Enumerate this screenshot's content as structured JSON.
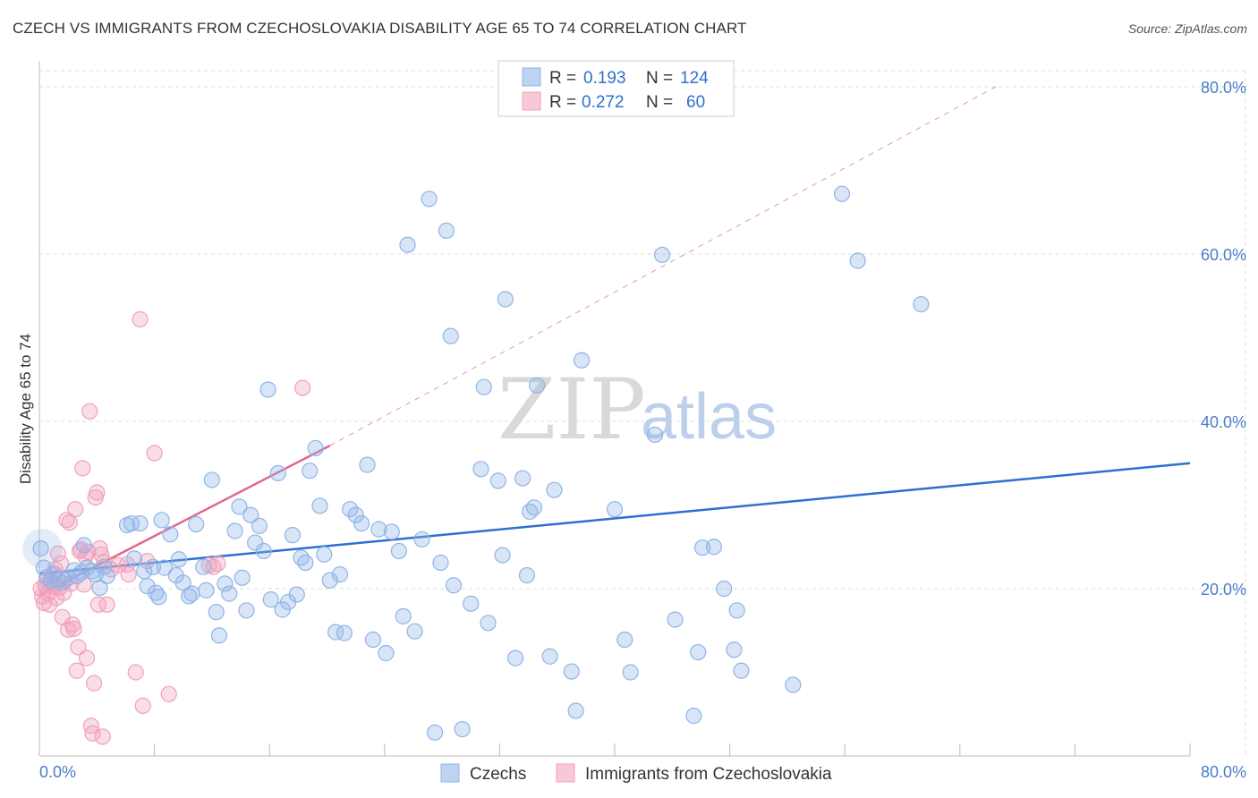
{
  "header": {
    "title": "CZECH VS IMMIGRANTS FROM CZECHOSLOVAKIA DISABILITY AGE 65 TO 74 CORRELATION CHART",
    "source": "Source: ZipAtlas.com"
  },
  "watermark": {
    "zip": "ZIP",
    "atlas": "atlas"
  },
  "colors": {
    "czechs": "#8fb4e8",
    "czechs_line": "#2f6fcf",
    "immigrants": "#f2a0ba",
    "immigrants_line": "#e2668f",
    "tick_text": "#4a7cc9",
    "grid": "#dddddd"
  },
  "chart_data": {
    "type": "scatter",
    "title": "CZECH VS IMMIGRANTS FROM CZECHOSLOVAKIA DISABILITY AGE 65 TO 74 CORRELATION CHART",
    "xlabel": "",
    "ylabel": "Disability Age 65 to 74",
    "xlim": [
      0,
      80
    ],
    "ylim": [
      0,
      80
    ],
    "x_tick_labels": [
      "0.0%",
      "80.0%"
    ],
    "y_tick_labels": [
      "20.0%",
      "40.0%",
      "60.0%",
      "80.0%"
    ],
    "y_ticks": [
      20,
      40,
      60,
      80
    ],
    "grid": true,
    "legend_top": [
      {
        "r_label": "R =",
        "r_value": "0.193",
        "n_label": "N =",
        "n_value": "124"
      },
      {
        "r_label": "R =",
        "r_value": "0.272",
        "n_label": "N =",
        "n_value": "60"
      }
    ],
    "legend_bottom": [
      "Czechs",
      "Immigrants from Czechoslovakia"
    ],
    "series": [
      {
        "name": "Czechs",
        "color": "#8fb4e8",
        "trend": {
          "x": [
            0,
            80
          ],
          "y": [
            21.8,
            35.0
          ],
          "dashed": false
        },
        "points": [
          [
            0.1,
            24.8
          ],
          [
            0.3,
            22.5
          ],
          [
            0.5,
            21.4
          ],
          [
            0.8,
            20.9
          ],
          [
            1.0,
            21.8
          ],
          [
            1.3,
            21.0
          ],
          [
            1.6,
            20.7
          ],
          [
            2.0,
            21.3
          ],
          [
            2.4,
            22.2
          ],
          [
            2.6,
            21.5
          ],
          [
            2.9,
            21.9
          ],
          [
            3.1,
            25.2
          ],
          [
            3.3,
            22.5
          ],
          [
            3.7,
            22.1
          ],
          [
            3.9,
            21.7
          ],
          [
            4.2,
            20.1
          ],
          [
            4.5,
            22.6
          ],
          [
            4.7,
            21.5
          ],
          [
            6.1,
            27.6
          ],
          [
            6.4,
            27.8
          ],
          [
            6.6,
            23.6
          ],
          [
            7.0,
            27.8
          ],
          [
            7.3,
            22.1
          ],
          [
            7.5,
            20.3
          ],
          [
            7.9,
            22.6
          ],
          [
            8.1,
            19.5
          ],
          [
            8.3,
            19.0
          ],
          [
            8.5,
            28.2
          ],
          [
            8.7,
            22.5
          ],
          [
            9.1,
            26.5
          ],
          [
            9.5,
            21.6
          ],
          [
            9.7,
            23.5
          ],
          [
            10.0,
            20.7
          ],
          [
            10.4,
            19.1
          ],
          [
            10.6,
            19.4
          ],
          [
            10.9,
            27.7
          ],
          [
            11.4,
            22.6
          ],
          [
            11.6,
            19.8
          ],
          [
            12.0,
            33.0
          ],
          [
            12.3,
            17.2
          ],
          [
            12.5,
            14.4
          ],
          [
            12.9,
            20.6
          ],
          [
            13.2,
            19.4
          ],
          [
            13.6,
            26.9
          ],
          [
            13.9,
            29.8
          ],
          [
            14.1,
            21.3
          ],
          [
            14.4,
            17.4
          ],
          [
            14.7,
            28.8
          ],
          [
            15.0,
            25.5
          ],
          [
            15.3,
            27.5
          ],
          [
            15.6,
            24.5
          ],
          [
            15.9,
            43.8
          ],
          [
            16.1,
            18.7
          ],
          [
            16.6,
            33.8
          ],
          [
            16.9,
            17.5
          ],
          [
            17.3,
            18.4
          ],
          [
            17.6,
            26.4
          ],
          [
            17.9,
            19.3
          ],
          [
            18.2,
            23.7
          ],
          [
            18.5,
            23.1
          ],
          [
            18.8,
            34.1
          ],
          [
            19.2,
            36.8
          ],
          [
            19.5,
            29.9
          ],
          [
            19.8,
            24.1
          ],
          [
            20.2,
            21.0
          ],
          [
            20.6,
            14.8
          ],
          [
            20.9,
            21.7
          ],
          [
            21.2,
            14.7
          ],
          [
            21.6,
            29.5
          ],
          [
            22.0,
            28.8
          ],
          [
            22.4,
            27.8
          ],
          [
            22.8,
            34.8
          ],
          [
            23.2,
            13.9
          ],
          [
            23.6,
            27.1
          ],
          [
            24.1,
            12.3
          ],
          [
            24.5,
            26.8
          ],
          [
            25.0,
            24.5
          ],
          [
            25.3,
            16.7
          ],
          [
            25.6,
            61.1
          ],
          [
            26.1,
            14.9
          ],
          [
            26.6,
            25.9
          ],
          [
            27.1,
            66.6
          ],
          [
            27.5,
            2.8
          ],
          [
            27.9,
            23.1
          ],
          [
            28.3,
            62.8
          ],
          [
            28.6,
            50.2
          ],
          [
            28.8,
            20.4
          ],
          [
            29.4,
            3.2
          ],
          [
            30.0,
            18.2
          ],
          [
            30.7,
            34.3
          ],
          [
            30.9,
            44.1
          ],
          [
            31.2,
            15.9
          ],
          [
            31.9,
            32.9
          ],
          [
            32.2,
            24.0
          ],
          [
            32.4,
            54.6
          ],
          [
            33.1,
            11.7
          ],
          [
            33.6,
            33.2
          ],
          [
            33.9,
            21.6
          ],
          [
            34.1,
            29.2
          ],
          [
            34.4,
            29.7
          ],
          [
            34.6,
            44.3
          ],
          [
            35.5,
            11.9
          ],
          [
            35.8,
            31.8
          ],
          [
            37.0,
            10.1
          ],
          [
            37.3,
            5.4
          ],
          [
            37.7,
            47.3
          ],
          [
            40.0,
            29.5
          ],
          [
            40.7,
            13.9
          ],
          [
            41.1,
            10.0
          ],
          [
            42.8,
            38.4
          ],
          [
            43.3,
            59.9
          ],
          [
            44.2,
            16.3
          ],
          [
            45.5,
            4.8
          ],
          [
            45.8,
            12.4
          ],
          [
            46.1,
            24.9
          ],
          [
            46.9,
            25.0
          ],
          [
            47.6,
            20.0
          ],
          [
            48.3,
            12.7
          ],
          [
            48.5,
            17.4
          ],
          [
            48.8,
            10.2
          ],
          [
            52.4,
            8.5
          ],
          [
            55.8,
            67.2
          ],
          [
            56.9,
            59.2
          ],
          [
            61.3,
            54.0
          ]
        ]
      },
      {
        "name": "Immigrants from Czechoslovakia",
        "color": "#f2a0ba",
        "trend": {
          "x": [
            0,
            20.2
          ],
          "y": [
            19.2,
            37.1
          ],
          "dashed": false
        },
        "trend_extension": {
          "x": [
            20.2,
            66.5
          ],
          "y": [
            37.1,
            80.0
          ],
          "dashed": true
        },
        "points": [
          [
            0.1,
            20.0
          ],
          [
            0.2,
            19.1
          ],
          [
            0.3,
            18.3
          ],
          [
            0.4,
            20.4
          ],
          [
            0.5,
            21.0
          ],
          [
            0.6,
            19.4
          ],
          [
            0.7,
            18.1
          ],
          [
            0.8,
            20.5
          ],
          [
            0.9,
            21.6
          ],
          [
            1.0,
            20.2
          ],
          [
            1.1,
            22.3
          ],
          [
            1.2,
            18.9
          ],
          [
            1.3,
            24.2
          ],
          [
            1.4,
            20.1
          ],
          [
            1.5,
            23.0
          ],
          [
            1.6,
            16.6
          ],
          [
            1.7,
            19.5
          ],
          [
            1.8,
            21.0
          ],
          [
            1.9,
            28.2
          ],
          [
            2.0,
            15.1
          ],
          [
            2.1,
            27.9
          ],
          [
            2.2,
            20.6
          ],
          [
            2.3,
            15.7
          ],
          [
            2.4,
            15.2
          ],
          [
            2.5,
            29.5
          ],
          [
            2.6,
            10.2
          ],
          [
            2.7,
            13.0
          ],
          [
            2.8,
            24.5
          ],
          [
            2.9,
            24.7
          ],
          [
            3.0,
            34.4
          ],
          [
            3.1,
            20.5
          ],
          [
            3.2,
            23.8
          ],
          [
            3.3,
            11.7
          ],
          [
            3.4,
            24.4
          ],
          [
            3.5,
            41.2
          ],
          [
            3.6,
            3.6
          ],
          [
            3.7,
            2.7
          ],
          [
            3.8,
            8.7
          ],
          [
            3.9,
            30.9
          ],
          [
            4.0,
            31.5
          ],
          [
            4.1,
            18.1
          ],
          [
            4.2,
            24.8
          ],
          [
            4.3,
            24.1
          ],
          [
            4.4,
            2.3
          ],
          [
            4.5,
            23.2
          ],
          [
            4.7,
            18.1
          ],
          [
            5.0,
            22.3
          ],
          [
            5.5,
            22.8
          ],
          [
            6.1,
            22.9
          ],
          [
            6.7,
            10.0
          ],
          [
            7.0,
            52.2
          ],
          [
            7.2,
            6.0
          ],
          [
            7.5,
            23.3
          ],
          [
            8.0,
            36.2
          ],
          [
            9.0,
            7.4
          ],
          [
            11.8,
            22.8
          ],
          [
            12.1,
            22.6
          ],
          [
            12.4,
            23.0
          ],
          [
            18.3,
            44.0
          ],
          [
            6.2,
            21.7
          ]
        ]
      }
    ]
  }
}
